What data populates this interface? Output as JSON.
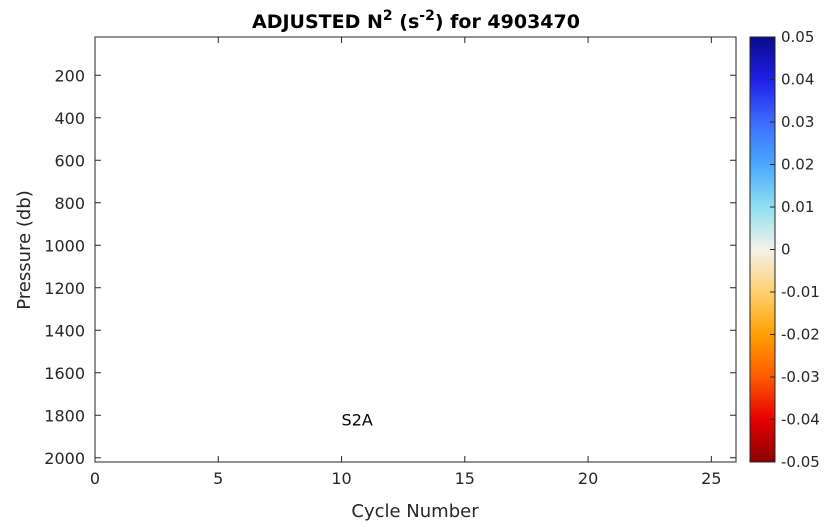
{
  "chart_data": {
    "type": "heatmap",
    "title_main": "ADJUSTED N",
    "title_sup": "2",
    "title_mid": " (s",
    "title_sup2": "-2",
    "title_end": ") for 4903470",
    "xlabel": "Cycle Number",
    "ylabel": "Pressure (db)",
    "xlim": [
      0,
      26
    ],
    "ylim": [
      2020,
      20
    ],
    "y_reversed": true,
    "xticks": [
      0,
      5,
      10,
      15,
      20,
      25
    ],
    "yticks": [
      200,
      400,
      600,
      800,
      1000,
      1200,
      1400,
      1600,
      1800,
      2000
    ],
    "annotation": {
      "text": "S2A",
      "x": 10,
      "y": 1820
    },
    "values": [],
    "colorbar": {
      "min": -0.05,
      "max": 0.05,
      "ticks": [
        0.05,
        0.04,
        0.03,
        0.02,
        0.01,
        0,
        -0.01,
        -0.02,
        -0.03,
        -0.04,
        -0.05
      ],
      "tick_labels": [
        "0.05",
        "0.04",
        "0.03",
        "0.02",
        "0.01",
        "0",
        "-0.01",
        "-0.02",
        "-0.03",
        "-0.04",
        "-0.05"
      ],
      "colors_top_to_bottom": [
        "#0a0a8a",
        "#1f1fe6",
        "#3b6bff",
        "#4aa8ff",
        "#8fe0f0",
        "#f4f2ea",
        "#ffd070",
        "#ffa000",
        "#ff5a00",
        "#e60000",
        "#8a0000"
      ]
    },
    "grid": false
  }
}
